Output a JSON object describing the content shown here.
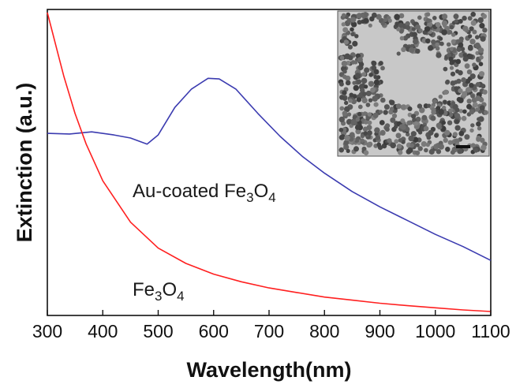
{
  "chart_data": {
    "type": "line",
    "title": "",
    "xlabel": "Wavelength(nm)",
    "ylabel": "Extinction (a.u.)",
    "xlim": [
      300,
      1100
    ],
    "ylim": [
      0,
      100
    ],
    "x_ticks": [
      300,
      400,
      500,
      600,
      700,
      800,
      900,
      1000,
      1100
    ],
    "x_tick_labels": [
      "300",
      "400",
      "500",
      "600",
      "700",
      "800",
      "900",
      "1000",
      "1100"
    ],
    "y_ticks_labeled": false,
    "grid": false,
    "legend": "none",
    "annotations": [
      {
        "text_parts": [
          "Au-coated Fe",
          "3",
          "O",
          "4"
        ],
        "series": "blue"
      },
      {
        "text_parts": [
          "Fe",
          "3",
          "O",
          "4"
        ],
        "series": "red"
      }
    ],
    "inset": {
      "type": "TEM micrograph",
      "description_visible": "nanoparticle image with scale bar"
    },
    "series": [
      {
        "color": "#3b3bb0",
        "x": [
          300,
          340,
          380,
          420,
          450,
          480,
          500,
          530,
          560,
          590,
          610,
          640,
          680,
          720,
          760,
          800,
          850,
          900,
          950,
          1000,
          1050,
          1100
        ],
        "y": [
          59.5,
          59.3,
          60.0,
          59.0,
          58.0,
          56.0,
          59.0,
          68.0,
          74.0,
          77.5,
          77.3,
          74.0,
          66.0,
          58.5,
          52.0,
          46.5,
          40.5,
          35.5,
          31.0,
          26.5,
          22.5,
          18.0
        ]
      },
      {
        "color": "#ff2020",
        "x": [
          300,
          310,
          320,
          330,
          340,
          350,
          370,
          400,
          450,
          500,
          550,
          600,
          650,
          700,
          750,
          800,
          850,
          900,
          950,
          1000,
          1050,
          1100
        ],
        "y": [
          99.0,
          92.0,
          85.0,
          78.0,
          72.0,
          66.0,
          56.0,
          44.0,
          30.5,
          22.0,
          17.0,
          13.5,
          11.0,
          9.0,
          7.5,
          6.0,
          5.0,
          4.0,
          3.2,
          2.5,
          1.8,
          1.3
        ]
      }
    ]
  }
}
